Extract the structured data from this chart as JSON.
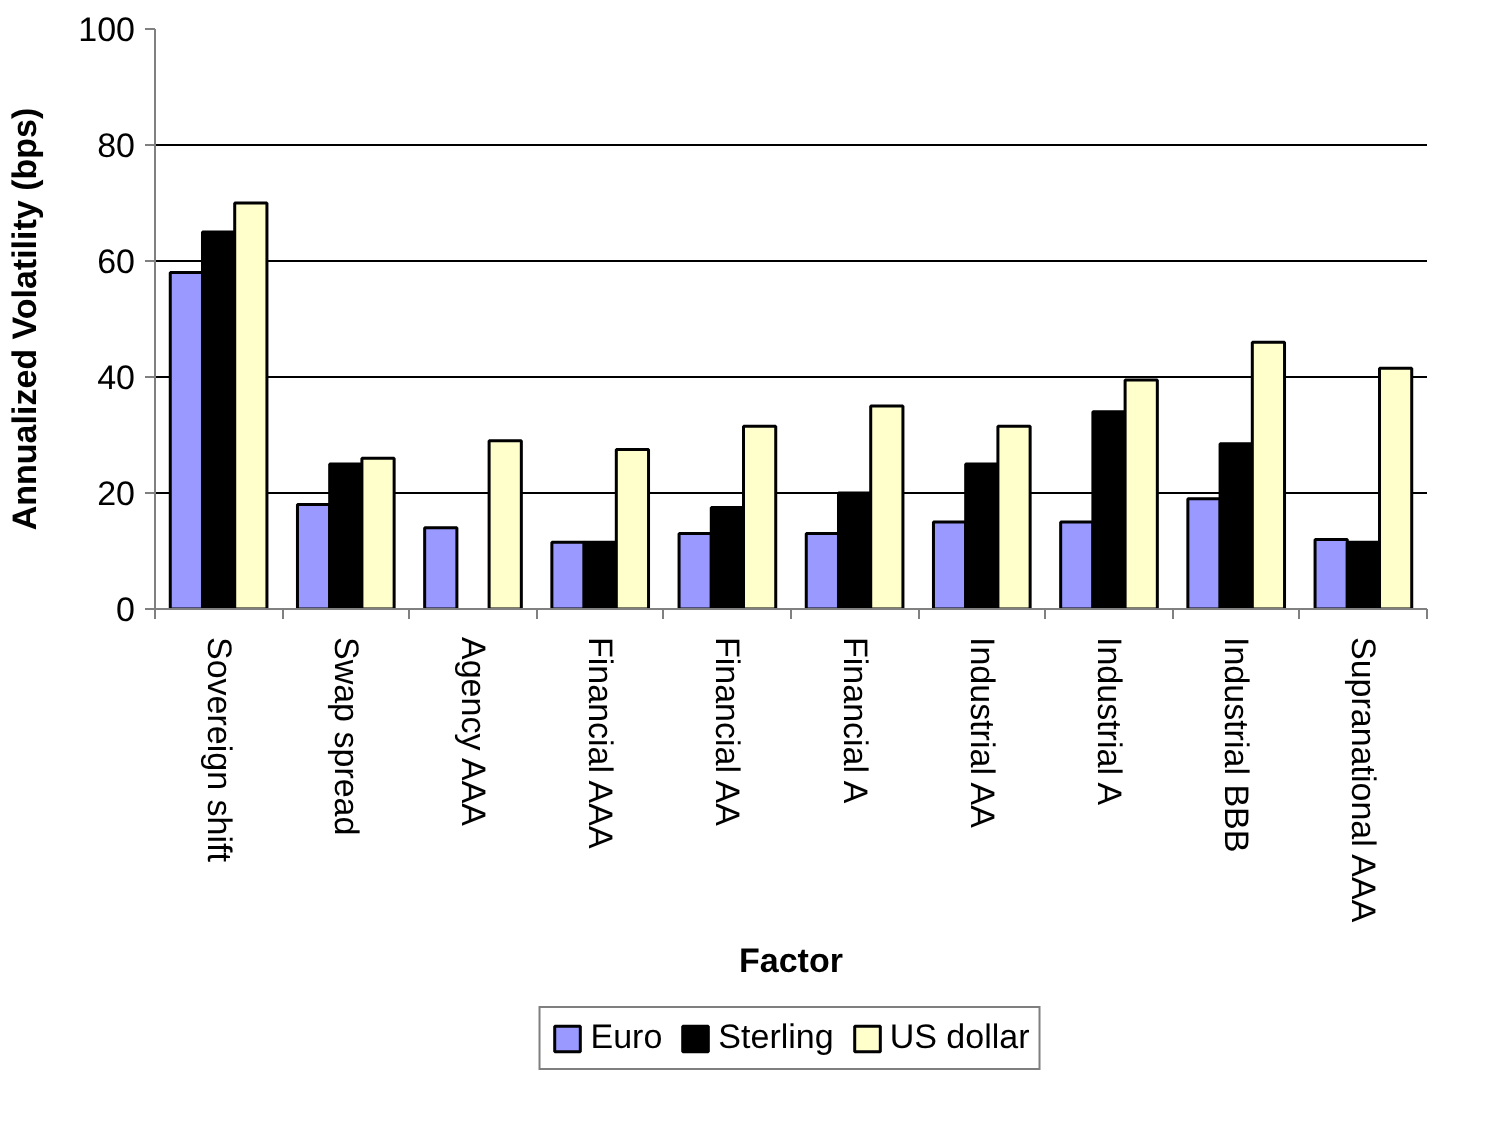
{
  "chart_data": {
    "type": "bar",
    "xlabel": "Factor",
    "ylabel": "Annualized Volatility (bps)",
    "categories": [
      "Sovereign shift",
      "Swap spread",
      "Agency AAA",
      "Financial AAA",
      "Financial AA",
      "Financial A",
      "Industrial AA",
      "Industrial A",
      "Industrial BBB",
      "Supranational AAA"
    ],
    "series": [
      {
        "name": "Euro",
        "color": "#9999ff",
        "values": [
          58,
          18,
          14,
          11.5,
          13,
          13,
          15,
          15,
          19,
          12
        ]
      },
      {
        "name": "Sterling",
        "color": "#000000",
        "values": [
          65,
          25,
          null,
          11.5,
          17.5,
          20,
          25,
          34,
          28.5,
          11.5
        ]
      },
      {
        "name": "US dollar",
        "color": "#ffffcc",
        "values": [
          70,
          26,
          29,
          27.5,
          31.5,
          35,
          31.5,
          39.5,
          46,
          41.5
        ]
      }
    ],
    "ylim": [
      0,
      100
    ],
    "yticks": [
      0,
      20,
      40,
      60,
      80,
      100
    ],
    "grid": "y",
    "legend": "bottom"
  }
}
